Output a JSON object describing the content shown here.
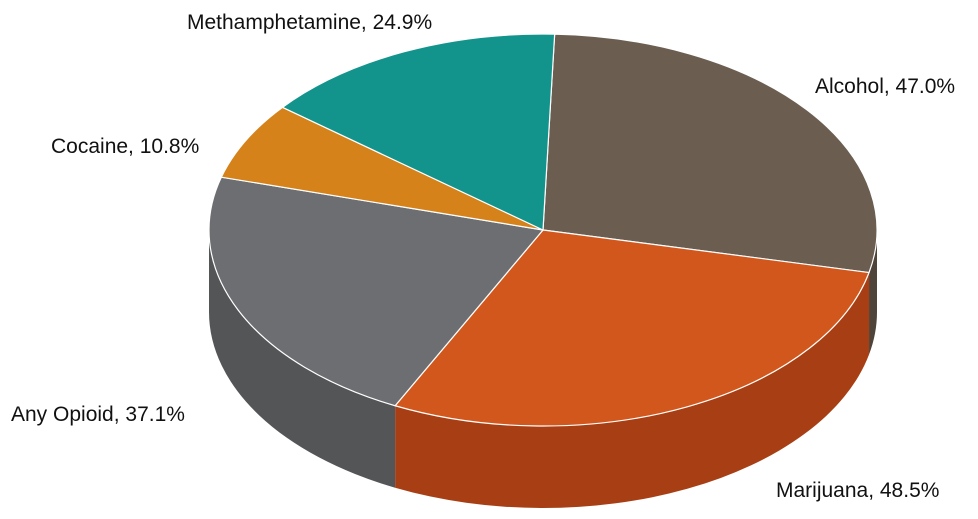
{
  "chart_data": {
    "type": "pie",
    "style": "3d-exploded-free",
    "slices": [
      {
        "label": "Alcohol, 47.0%",
        "category": "Alcohol",
        "value": 47.0,
        "color": "#6b5e51",
        "side": "#4e4439"
      },
      {
        "label": "Marijuana, 48.5%",
        "category": "Marijuana",
        "value": 48.5,
        "color": "#d2571c",
        "side": "#a83f14"
      },
      {
        "label": "Any Opioid, 37.1%",
        "category": "Any Opioid",
        "value": 37.1,
        "color": "#6d6e71",
        "side": "#545557"
      },
      {
        "label": "Cocaine, 10.8%",
        "category": "Cocaine",
        "value": 10.8,
        "color": "#d5821a",
        "side": "#a86412"
      },
      {
        "label": "Methamphetamine, 24.9%",
        "category": "Methamphetamine",
        "value": 24.9,
        "color": "#12948c",
        "side": "#0c6f69"
      }
    ]
  }
}
